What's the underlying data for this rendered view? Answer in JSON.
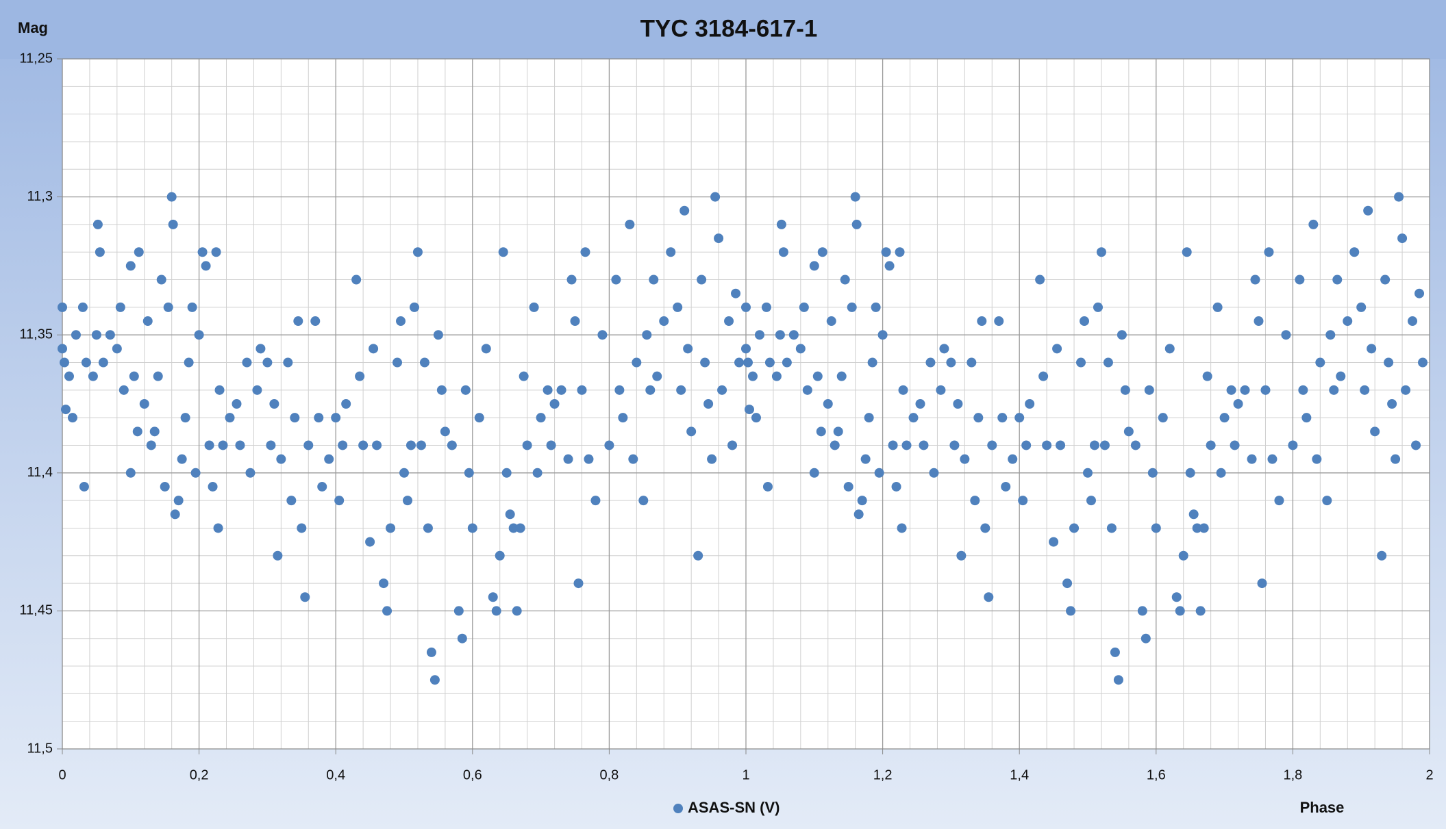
{
  "chart_data": {
    "type": "scatter",
    "title": "TYC 3184-617-1",
    "y_label": "Mag",
    "x_label": "Phase",
    "xlim": [
      0,
      2
    ],
    "xticks": [
      0,
      {
        "value": 0.2,
        "label": "0,2"
      },
      {
        "value": 0.4,
        "label": "0,4"
      },
      {
        "value": 0.6,
        "label": "0,6"
      },
      {
        "value": 0.8,
        "label": "0,8"
      },
      1,
      {
        "value": 1.2,
        "label": "1,2"
      },
      {
        "value": 1.4,
        "label": "1,4"
      },
      {
        "value": 1.6,
        "label": "1,6"
      },
      {
        "value": 1.8,
        "label": "1,8"
      },
      2
    ],
    "ylim": [
      11.25,
      11.5
    ],
    "y_inverted": true,
    "yticks": [
      {
        "value": 11.25,
        "label": "11,25"
      },
      {
        "value": 11.3,
        "label": "11,3"
      },
      {
        "value": 11.35,
        "label": "11,35"
      },
      {
        "value": 11.4,
        "label": "11,4"
      },
      {
        "value": 11.45,
        "label": "11,45"
      },
      {
        "value": 11.5,
        "label": "11,5"
      }
    ],
    "grid": true,
    "legend": "bottom",
    "x": [
      0,
      0,
      0.003,
      0.005,
      0.01,
      0.015,
      0.02,
      0.03,
      0.032,
      0.035,
      0.045,
      0.05,
      0.052,
      0.055,
      0.06,
      0.07,
      0.08,
      0.085,
      0.09,
      0.1,
      0.1,
      0.105,
      0.11,
      0.112,
      0.12,
      0.125,
      0.13,
      0.135,
      0.14,
      0.145,
      0.15,
      0.155,
      0.16,
      0.162,
      0.165,
      0.17,
      0.175,
      0.18,
      0.185,
      0.19,
      0.195,
      0.2,
      0.205,
      0.21,
      0.215,
      0.22,
      0.225,
      0.228,
      0.23,
      0.235,
      0.245,
      0.255,
      0.26,
      0.27,
      0.275,
      0.285,
      0.29,
      0.3,
      0.305,
      0.31,
      0.315,
      0.32,
      0.33,
      0.335,
      0.34,
      0.345,
      0.35,
      0.355,
      0.36,
      0.37,
      0.375,
      0.38,
      0.39,
      0.4,
      0.405,
      0.41,
      0.415,
      0.43,
      0.435,
      0.44,
      0.45,
      0.455,
      0.46,
      0.47,
      0.475,
      0.48,
      0.49,
      0.495,
      0.5,
      0.505,
      0.51,
      0.515,
      0.52,
      0.525,
      0.53,
      0.535,
      0.54,
      0.545,
      0.55,
      0.555,
      0.56,
      0.57,
      0.58,
      0.585,
      0.59,
      0.595,
      0.6,
      0.61,
      0.62,
      0.63,
      0.635,
      0.64,
      0.645,
      0.65,
      0.655,
      0.66,
      0.665,
      0.67,
      0.675,
      0.68,
      0.69,
      0.695,
      0.7,
      0.71,
      0.715,
      0.72,
      0.73,
      0.74,
      0.745,
      0.75,
      0.755,
      0.76,
      0.765,
      0.77,
      0.78,
      0.79,
      0.8,
      0.81,
      0.815,
      0.82,
      0.83,
      0.835,
      0.84,
      0.85,
      0.855,
      0.86,
      0.865,
      0.87,
      0.88,
      0.89,
      0.9,
      0.905,
      0.91,
      0.915,
      0.92,
      0.93,
      0.935,
      0.94,
      0.945,
      0.95,
      0.955,
      0.96,
      0.965,
      0.975,
      0.98,
      0.985,
      0.99,
      1,
      1,
      1.003,
      1.005,
      1.01,
      1.015,
      1.02,
      1.03,
      1.032,
      1.035,
      1.045,
      1.05,
      1.052,
      1.055,
      1.06,
      1.07,
      1.08,
      1.085,
      1.09,
      1.1,
      1.1,
      1.105,
      1.11,
      1.112,
      1.12,
      1.125,
      1.13,
      1.135,
      1.14,
      1.145,
      1.15,
      1.155,
      1.16,
      1.162,
      1.165,
      1.17,
      1.175,
      1.18,
      1.185,
      1.19,
      1.195,
      1.2,
      1.205,
      1.21,
      1.215,
      1.22,
      1.225,
      1.228,
      1.23,
      1.235,
      1.245,
      1.255,
      1.26,
      1.27,
      1.275,
      1.285,
      1.29,
      1.3,
      1.305,
      1.31,
      1.315,
      1.32,
      1.33,
      1.335,
      1.34,
      1.345,
      1.35,
      1.355,
      1.36,
      1.37,
      1.375,
      1.38,
      1.39,
      1.4,
      1.405,
      1.41,
      1.415,
      1.43,
      1.435,
      1.44,
      1.45,
      1.455,
      1.46,
      1.47,
      1.475,
      1.48,
      1.49,
      1.495,
      1.5,
      1.505,
      1.51,
      1.515,
      1.52,
      1.525,
      1.53,
      1.535,
      1.54,
      1.545,
      1.55,
      1.555,
      1.56,
      1.57,
      1.58,
      1.585,
      1.59,
      1.595,
      1.6,
      1.61,
      1.62,
      1.63,
      1.635,
      1.64,
      1.645,
      1.65,
      1.655,
      1.66,
      1.665,
      1.67,
      1.675,
      1.68,
      1.69,
      1.695,
      1.7,
      1.71,
      1.715,
      1.72,
      1.73,
      1.74,
      1.745,
      1.75,
      1.755,
      1.76,
      1.765,
      1.77,
      1.78,
      1.79,
      1.8,
      1.81,
      1.815,
      1.82,
      1.83,
      1.835,
      1.84,
      1.85,
      1.855,
      1.86,
      1.865,
      1.87,
      1.88,
      1.89,
      1.9,
      1.905,
      1.91,
      1.915,
      1.92,
      1.93,
      1.935,
      1.94,
      1.945,
      1.95,
      1.955,
      1.96,
      1.965,
      1.975,
      1.98,
      1.985,
      1.99
    ],
    "series": [
      {
        "name": "ASAS-SN (V)",
        "color": "#4f81bd",
        "values": [
          11.34,
          11.355,
          11.36,
          11.377,
          11.365,
          11.38,
          11.35,
          11.34,
          11.405,
          11.36,
          11.365,
          11.35,
          11.31,
          11.32,
          11.36,
          11.35,
          11.355,
          11.34,
          11.37,
          11.325,
          11.4,
          11.365,
          11.385,
          11.32,
          11.375,
          11.345,
          11.39,
          11.385,
          11.365,
          11.33,
          11.405,
          11.34,
          11.3,
          11.31,
          11.415,
          11.41,
          11.395,
          11.38,
          11.36,
          11.34,
          11.4,
          11.35,
          11.32,
          11.325,
          11.39,
          11.405,
          11.32,
          11.42,
          11.37,
          11.39,
          11.38,
          11.375,
          11.39,
          11.36,
          11.4,
          11.37,
          11.355,
          11.36,
          11.39,
          11.375,
          11.43,
          11.395,
          11.36,
          11.41,
          11.38,
          11.345,
          11.42,
          11.445,
          11.39,
          11.345,
          11.38,
          11.405,
          11.395,
          11.38,
          11.41,
          11.39,
          11.375,
          11.33,
          11.365,
          11.39,
          11.425,
          11.355,
          11.39,
          11.44,
          11.45,
          11.42,
          11.36,
          11.345,
          11.4,
          11.41,
          11.39,
          11.34,
          11.32,
          11.39,
          11.36,
          11.42,
          11.465,
          11.475,
          11.35,
          11.37,
          11.385,
          11.39,
          11.45,
          11.46,
          11.37,
          11.4,
          11.42,
          11.38,
          11.355,
          11.445,
          11.45,
          11.43,
          11.32,
          11.4,
          11.415,
          11.42,
          11.45,
          11.42,
          11.365,
          11.39,
          11.34,
          11.4,
          11.38,
          11.37,
          11.39,
          11.375,
          11.37,
          11.395,
          11.33,
          11.345,
          11.44,
          11.37,
          11.32,
          11.395,
          11.41,
          11.35,
          11.39,
          11.33,
          11.37,
          11.38,
          11.31,
          11.395,
          11.36,
          11.41,
          11.35,
          11.37,
          11.33,
          11.365,
          11.345,
          11.32,
          11.34,
          11.37,
          11.305,
          11.355,
          11.385,
          11.43,
          11.33,
          11.36,
          11.375,
          11.395,
          11.3,
          11.315,
          11.37,
          11.345,
          11.39,
          11.335,
          11.36,
          11.34,
          11.355,
          11.36,
          11.377,
          11.365,
          11.38,
          11.35,
          11.34,
          11.405,
          11.36,
          11.365,
          11.35,
          11.31,
          11.32,
          11.36,
          11.35,
          11.355,
          11.34,
          11.37,
          11.325,
          11.4,
          11.365,
          11.385,
          11.32,
          11.375,
          11.345,
          11.39,
          11.385,
          11.365,
          11.33,
          11.405,
          11.34,
          11.3,
          11.31,
          11.415,
          11.41,
          11.395,
          11.38,
          11.36,
          11.34,
          11.4,
          11.35,
          11.32,
          11.325,
          11.39,
          11.405,
          11.32,
          11.42,
          11.37,
          11.39,
          11.38,
          11.375,
          11.39,
          11.36,
          11.4,
          11.37,
          11.355,
          11.36,
          11.39,
          11.375,
          11.43,
          11.395,
          11.36,
          11.41,
          11.38,
          11.345,
          11.42,
          11.445,
          11.39,
          11.345,
          11.38,
          11.405,
          11.395,
          11.38,
          11.41,
          11.39,
          11.375,
          11.33,
          11.365,
          11.39,
          11.425,
          11.355,
          11.39,
          11.44,
          11.45,
          11.42,
          11.36,
          11.345,
          11.4,
          11.41,
          11.39,
          11.34,
          11.32,
          11.39,
          11.36,
          11.42,
          11.465,
          11.475,
          11.35,
          11.37,
          11.385,
          11.39,
          11.45,
          11.46,
          11.37,
          11.4,
          11.42,
          11.38,
          11.355,
          11.445,
          11.45,
          11.43,
          11.32,
          11.4,
          11.415,
          11.42,
          11.45,
          11.42,
          11.365,
          11.39,
          11.34,
          11.4,
          11.38,
          11.37,
          11.39,
          11.375,
          11.37,
          11.395,
          11.33,
          11.345,
          11.44,
          11.37,
          11.32,
          11.395,
          11.41,
          11.35,
          11.39,
          11.33,
          11.37,
          11.38,
          11.31,
          11.395,
          11.36,
          11.41,
          11.35,
          11.37,
          11.33,
          11.365,
          11.345,
          11.32,
          11.34,
          11.37,
          11.305,
          11.355,
          11.385,
          11.43,
          11.33,
          11.36,
          11.375,
          11.395,
          11.3,
          11.315,
          11.37,
          11.345,
          11.39,
          11.335,
          11.36
        ]
      }
    ]
  }
}
